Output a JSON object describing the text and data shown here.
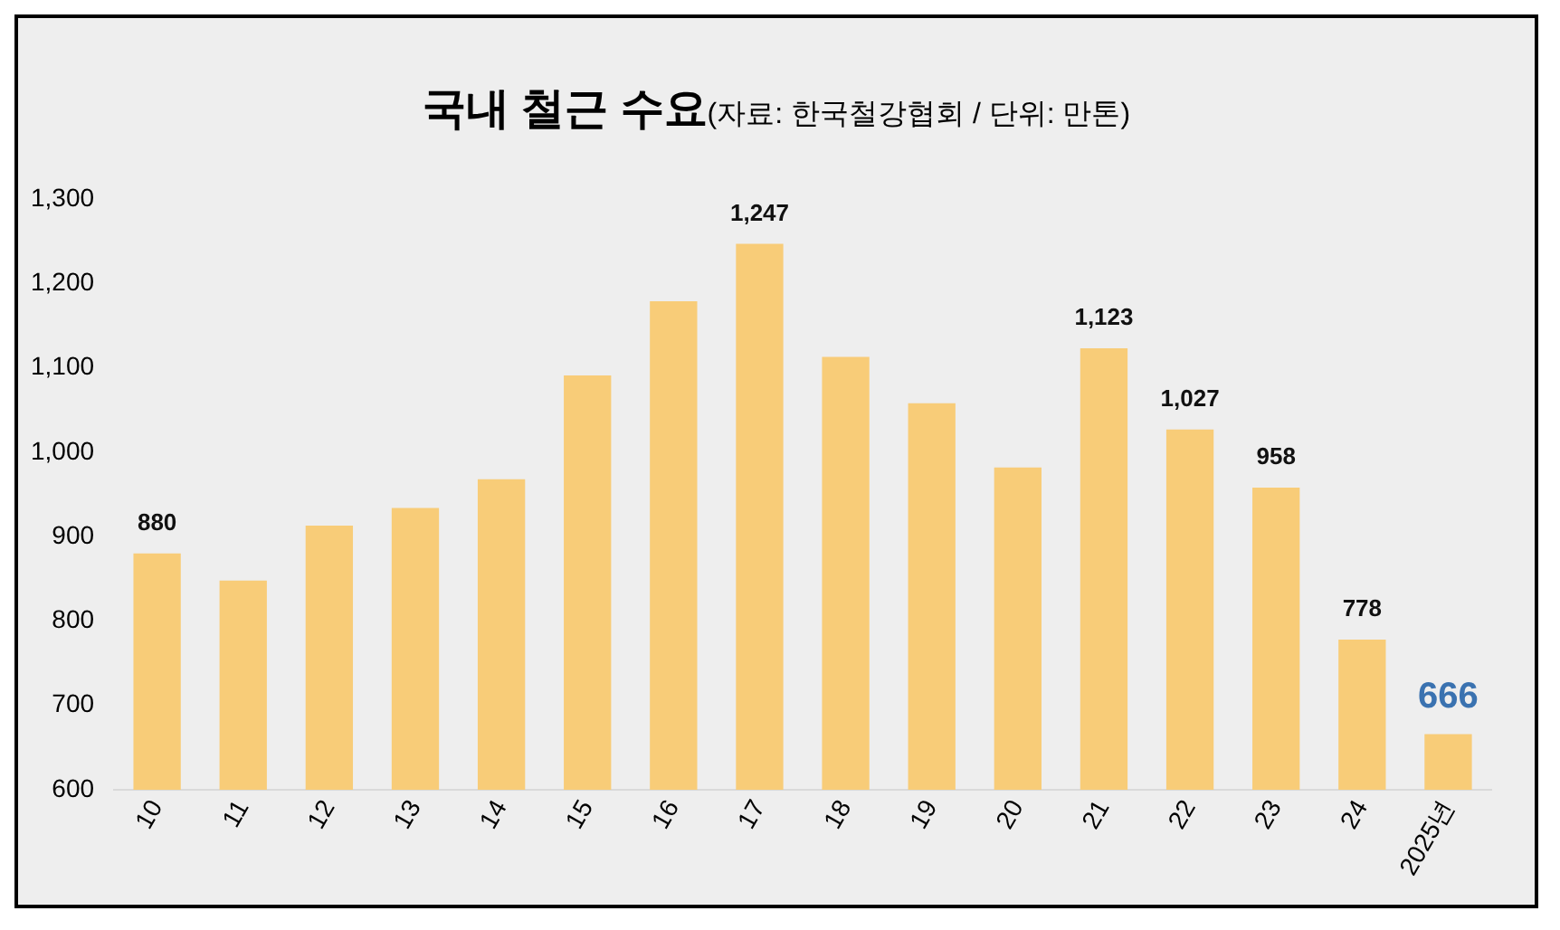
{
  "chart_data": {
    "type": "bar",
    "title": "국내 철근 수요",
    "subtitle": "(자료: 한국철강협회 / 단위: 만톤)",
    "categories": [
      "10",
      "11",
      "12",
      "13",
      "14",
      "15",
      "16",
      "17",
      "18",
      "19",
      "20",
      "21",
      "22",
      "23",
      "24",
      "2025년"
    ],
    "values": [
      880,
      848,
      913,
      934,
      968,
      1091,
      1179,
      1247,
      1113,
      1058,
      982,
      1123,
      1027,
      958,
      778,
      666
    ],
    "value_labels": [
      "880",
      null,
      null,
      null,
      null,
      null,
      null,
      "1,247",
      null,
      null,
      null,
      "1,123",
      "1,027",
      "958",
      "778",
      "666"
    ],
    "color": "#f8cc78",
    "ylim": [
      600,
      1300
    ],
    "yticks": [
      {
        "value": 600,
        "label": "600"
      },
      {
        "value": 700,
        "label": "700"
      },
      {
        "value": 800,
        "label": "800"
      },
      {
        "value": 900,
        "label": "900"
      },
      {
        "value": 1000,
        "label": "1,000"
      },
      {
        "value": 1100,
        "label": "1,100"
      },
      {
        "value": 1200,
        "label": "1,200"
      },
      {
        "value": 1300,
        "label": "1,300"
      }
    ],
    "grid": false,
    "legend": false
  }
}
